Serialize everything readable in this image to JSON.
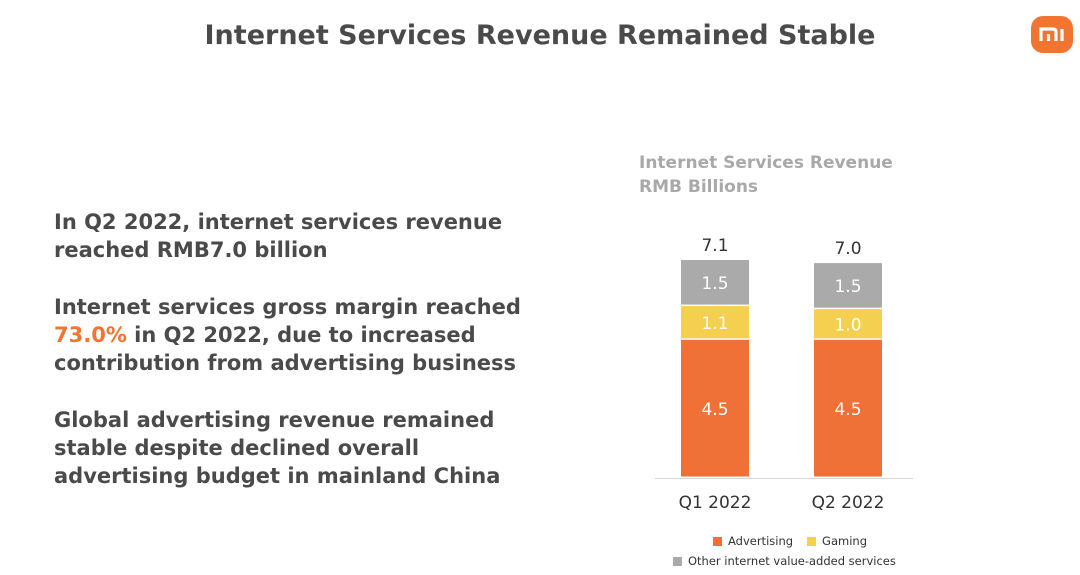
{
  "slide": {
    "title": "Internet Services Revenue Remained Stable",
    "logo_text": "mi"
  },
  "bullets": [
    {
      "text": "In Q2 2022, internet services revenue\nreached RMB7.0 billion"
    },
    {
      "before": "Internet services gross margin reached\n",
      "highlight": "73.0%",
      "after": " in Q2 2022, due to increased\ncontribution from advertising business"
    },
    {
      "text": "Global advertising revenue remained\nstable despite declined overall\nadvertising budget in mainland China"
    }
  ],
  "colors": {
    "accent": "#f27431",
    "advertising": "#f07138",
    "gaming": "#f5cf4f",
    "other": "#aaaaaa",
    "title_text": "#4a4a4a"
  },
  "chart_data": {
    "type": "bar",
    "stacked": true,
    "title": "Internet Services Revenue",
    "subtitle": "RMB Billions",
    "categories": [
      "Q1 2022",
      "Q2 2022"
    ],
    "totals": [
      "7.1",
      "7.0"
    ],
    "series": [
      {
        "name": "Advertising",
        "values": [
          4.5,
          4.5
        ],
        "labels": [
          "4.5",
          "4.5"
        ],
        "color": "#f07138"
      },
      {
        "name": "Gaming",
        "values": [
          1.1,
          1.0
        ],
        "labels": [
          "1.1",
          "1.0"
        ],
        "color": "#f5cf4f"
      },
      {
        "name": "Other internet value-added services",
        "values": [
          1.5,
          1.5
        ],
        "labels": [
          "1.5",
          "1.5"
        ],
        "color": "#aaaaaa"
      }
    ],
    "legend_position": "bottom",
    "grid": false
  }
}
